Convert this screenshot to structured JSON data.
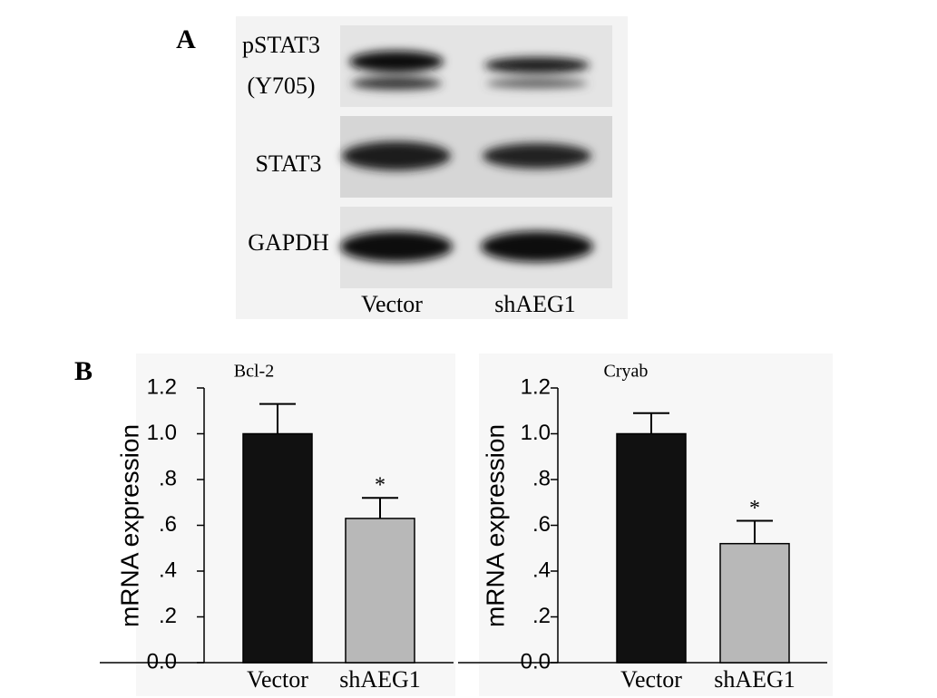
{
  "panel_a": {
    "label": "A",
    "rows": [
      "pSTAT3",
      "(Y705)",
      "STAT3",
      "GAPDH"
    ],
    "lanes": [
      "Vector",
      "shAEG1"
    ]
  },
  "panel_b": {
    "label": "B"
  },
  "chart_data": [
    {
      "type": "bar",
      "title": "Bcl-2",
      "y_label": "mRNA expression",
      "categories": [
        "Vector",
        "shAEG1"
      ],
      "values": [
        1.0,
        0.63
      ],
      "errors": [
        0.13,
        0.09
      ],
      "colors": [
        "#111111",
        "#b8b8b8"
      ],
      "significance": [
        null,
        "*"
      ],
      "ylim": [
        0,
        1.2
      ],
      "yticks": [
        {
          "value": 0,
          "label": "0.0"
        },
        {
          "value": 0.2,
          "label": ".2"
        },
        {
          "value": 0.4,
          "label": ".4"
        },
        {
          "value": 0.6,
          "label": ".6"
        },
        {
          "value": 0.8,
          "label": ".8"
        },
        {
          "value": 1.0,
          "label": "1.0"
        },
        1.2
      ]
    },
    {
      "type": "bar",
      "title": "Cryab",
      "y_label": "mRNA expression",
      "categories": [
        "Vector",
        "shAEG1"
      ],
      "values": [
        1.0,
        0.52
      ],
      "errors": [
        0.09,
        0.1
      ],
      "colors": [
        "#111111",
        "#b8b8b8"
      ],
      "significance": [
        null,
        "*"
      ],
      "ylim": [
        0,
        1.2
      ],
      "yticks": [
        {
          "value": 0,
          "label": "0.0"
        },
        {
          "value": 0.2,
          "label": ".2"
        },
        {
          "value": 0.4,
          "label": ".4"
        },
        {
          "value": 0.6,
          "label": ".6"
        },
        {
          "value": 0.8,
          "label": ".8"
        },
        {
          "value": 1.0,
          "label": "1.0"
        },
        1.2
      ]
    }
  ]
}
